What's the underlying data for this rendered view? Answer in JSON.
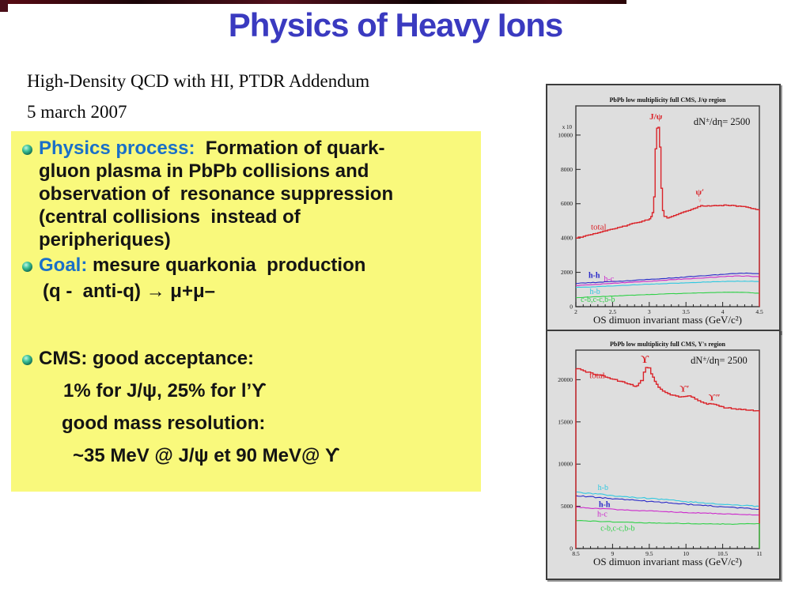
{
  "slide": {
    "title": "Physics of Heavy Ions",
    "subtitle_line1": "High-Density QCD with HI, PTDR Addendum",
    "subtitle_line2": "5 march 2007",
    "accent_blue": "#1a70c8",
    "title_blue": "#3a3ac0",
    "box_yellow": "#f9f97c",
    "bullets": {
      "b1_label": "Physics process:",
      "b1_line1": "  Formation of quark-",
      "b1_lines": [
        "gluon plasma in PbPb collisions and",
        "observation of  resonance suppression",
        "(central collisions  instead of",
        "peripheriques)"
      ],
      "b2_label": "Goal:",
      "b2_text": " mesure quarkonia  production",
      "b2_formula": "(q -  anti-q) → μ+μ–",
      "b3_text": "CMS: good acceptance:",
      "b3_sub1": "1% for J/ψ, 25% for l’ϒ",
      "b3_sub2": "good mass resolution:",
      "b3_sub3": "~35 MeV @ J/ψ et 90 MeV@ ϒ"
    }
  },
  "chart_data": [
    {
      "type": "line",
      "title": "PbPb low multiplicity full CMS, J/ψ region",
      "xlabel": "OS dimuon invariant mass (GeV/c²)",
      "xlim": [
        2,
        4.5
      ],
      "ylim": [
        0,
        11700
      ],
      "xticks": [
        2,
        2.5,
        3,
        3.5,
        4,
        4.5
      ],
      "minor_x_step": 0.1,
      "yticks": [
        0,
        2000,
        4000,
        6000,
        8000,
        10000
      ],
      "y_scale_label": "x 10",
      "grid": false,
      "series": [
        {
          "name": "c-b,c-c,b-b",
          "color": "#30d048",
          "noise": 10,
          "width": 1.1,
          "points": [
            [
              2,
              520
            ],
            [
              2.3,
              580
            ],
            [
              2.6,
              640
            ],
            [
              2.9,
              690
            ],
            [
              3.2,
              740
            ],
            [
              3.5,
              780
            ],
            [
              3.8,
              815
            ],
            [
              4.05,
              840
            ],
            [
              4.2,
              845
            ],
            [
              4.35,
              825
            ],
            [
              4.5,
              780
            ]
          ]
        },
        {
          "name": "h-b",
          "color": "#30c8e0",
          "noise": 14,
          "width": 1.1,
          "points": [
            [
              2,
              1120
            ],
            [
              2.3,
              1170
            ],
            [
              2.6,
              1230
            ],
            [
              2.9,
              1290
            ],
            [
              3.2,
              1340
            ],
            [
              3.5,
              1390
            ],
            [
              3.8,
              1440
            ],
            [
              4.1,
              1480
            ],
            [
              4.3,
              1490
            ],
            [
              4.5,
              1460
            ]
          ]
        },
        {
          "name": "h-c",
          "color": "#cc28cc",
          "noise": 18,
          "width": 1.1,
          "points": [
            [
              2,
              1230
            ],
            [
              2.3,
              1300
            ],
            [
              2.6,
              1380
            ],
            [
              2.9,
              1460
            ],
            [
              3.2,
              1540
            ],
            [
              3.5,
              1620
            ],
            [
              3.8,
              1700
            ],
            [
              4.0,
              1750
            ],
            [
              4.2,
              1790
            ],
            [
              4.35,
              1790
            ],
            [
              4.5,
              1740
            ]
          ]
        },
        {
          "name": "h-h",
          "color": "#2828c8",
          "noise": 18,
          "width": 1.1,
          "points": [
            [
              2,
              1350
            ],
            [
              2.3,
              1420
            ],
            [
              2.6,
              1490
            ],
            [
              2.9,
              1560
            ],
            [
              3.2,
              1640
            ],
            [
              3.5,
              1730
            ],
            [
              3.8,
              1820
            ],
            [
              4.0,
              1880
            ],
            [
              4.2,
              1930
            ],
            [
              4.35,
              1950
            ],
            [
              4.5,
              1920
            ]
          ]
        },
        {
          "name": "total",
          "color": "#da2329",
          "noise": 25,
          "step": true,
          "width": 1.4,
          "points": [
            [
              2,
              4000
            ],
            [
              2.1,
              4100
            ],
            [
              2.2,
              4200
            ],
            [
              2.3,
              4310
            ],
            [
              2.4,
              4420
            ],
            [
              2.5,
              4530
            ],
            [
              2.6,
              4640
            ],
            [
              2.7,
              4760
            ],
            [
              2.8,
              4880
            ],
            [
              2.9,
              4990
            ],
            [
              2.98,
              5060
            ],
            [
              3.0,
              5120
            ],
            [
              3.02,
              5250
            ],
            [
              3.04,
              5480
            ],
            [
              3.06,
              6400
            ],
            [
              3.08,
              9200
            ],
            [
              3.1,
              10400
            ],
            [
              3.12,
              10450
            ],
            [
              3.14,
              9300
            ],
            [
              3.16,
              6900
            ],
            [
              3.18,
              5600
            ],
            [
              3.2,
              5260
            ],
            [
              3.24,
              5170
            ],
            [
              3.3,
              5260
            ],
            [
              3.4,
              5420
            ],
            [
              3.5,
              5570
            ],
            [
              3.6,
              5720
            ],
            [
              3.66,
              5830
            ],
            [
              3.7,
              5890
            ],
            [
              3.76,
              5860
            ],
            [
              3.85,
              5880
            ],
            [
              3.95,
              5900
            ],
            [
              4.05,
              5910
            ],
            [
              4.15,
              5890
            ],
            [
              4.25,
              5840
            ],
            [
              4.35,
              5770
            ],
            [
              4.45,
              5660
            ],
            [
              4.5,
              5600
            ]
          ]
        }
      ],
      "edges": [
        {
          "x": 4.5,
          "y1": 0,
          "y2": 5600,
          "color": "#da2329"
        }
      ],
      "annotations": [
        {
          "x": 3.09,
          "y": 11100,
          "text": "J/ψ",
          "color": "#da2329",
          "size": 11,
          "bold": true
        },
        {
          "x": 3.99,
          "y": 10800,
          "text": "dN±/dη= 2500",
          "color": "#111111",
          "size": 12.5
        },
        {
          "x": 3.69,
          "y": 6700,
          "text": "ψ′",
          "color": "#da2329",
          "size": 11,
          "bold": true
        },
        {
          "x": 3.69,
          "y": 6220,
          "text": "∨",
          "color": "#ef9a9a",
          "size": 7
        },
        {
          "x": 2.31,
          "y": 4660,
          "text": "total",
          "color": "#da2329",
          "size": 11
        },
        {
          "x": 2.25,
          "y": 1840,
          "text": "h-h",
          "color": "#2828c8",
          "size": 10,
          "bold": true
        },
        {
          "x": 2.45,
          "y": 1630,
          "text": "h-c",
          "color": "#cc28cc",
          "size": 10
        },
        {
          "x": 2.26,
          "y": 890,
          "text": "h-b",
          "color": "#30c8e0",
          "size": 10
        },
        {
          "x": 2.3,
          "y": 440,
          "text": "c-b,c-c,b-b",
          "color": "#30d048",
          "size": 10
        }
      ]
    },
    {
      "type": "line",
      "title": "PbPb low multiplicity full CMS, Y's region",
      "xlabel": "OS dimuon invariant mass (GeV/c²)",
      "xlim": [
        8.5,
        11
      ],
      "ylim": [
        0,
        23500
      ],
      "xticks": [
        8.5,
        9,
        9.5,
        10,
        10.5,
        11
      ],
      "minor_x_step": 0.1,
      "yticks": [
        0,
        5000,
        10000,
        15000,
        20000
      ],
      "y_scale_label": "",
      "grid": false,
      "series": [
        {
          "name": "c-b,c-c,b-b",
          "color": "#30d048",
          "noise": 35,
          "width": 1.1,
          "points": [
            [
              8.5,
              3300
            ],
            [
              8.8,
              3220
            ],
            [
              9.1,
              3130
            ],
            [
              9.4,
              3050
            ],
            [
              9.7,
              3000
            ],
            [
              10,
              2960
            ],
            [
              10.3,
              2920
            ],
            [
              10.6,
              2900
            ],
            [
              10.8,
              2920
            ],
            [
              11,
              2950
            ]
          ]
        },
        {
          "name": "h-c",
          "color": "#cc28cc",
          "noise": 45,
          "width": 1.1,
          "points": [
            [
              8.5,
              4900
            ],
            [
              8.8,
              4750
            ],
            [
              9.1,
              4600
            ],
            [
              9.4,
              4480
            ],
            [
              9.7,
              4370
            ],
            [
              10,
              4270
            ],
            [
              10.3,
              4180
            ],
            [
              10.6,
              4100
            ],
            [
              10.8,
              4020
            ],
            [
              11,
              3950
            ]
          ]
        },
        {
          "name": "h-h",
          "color": "#2828c8",
          "noise": 70,
          "width": 1.1,
          "points": [
            [
              8.5,
              6250
            ],
            [
              8.8,
              6050
            ],
            [
              9.1,
              5850
            ],
            [
              9.4,
              5650
            ],
            [
              9.7,
              5450
            ],
            [
              10,
              5250
            ],
            [
              10.3,
              5050
            ],
            [
              10.6,
              4900
            ],
            [
              10.8,
              4780
            ],
            [
              11,
              4650
            ]
          ]
        },
        {
          "name": "h-b",
          "color": "#30c8e0",
          "noise": 70,
          "width": 1.1,
          "points": [
            [
              8.5,
              6700
            ],
            [
              8.8,
              6450
            ],
            [
              9.1,
              6200
            ],
            [
              9.4,
              6000
            ],
            [
              9.7,
              5800
            ],
            [
              10,
              5550
            ],
            [
              10.3,
              5350
            ],
            [
              10.6,
              5200
            ],
            [
              10.8,
              5100
            ],
            [
              11,
              5000
            ]
          ]
        },
        {
          "name": "total",
          "color": "#da2329",
          "noise": 90,
          "step": true,
          "width": 1.4,
          "points": [
            [
              8.5,
              21300
            ],
            [
              8.6,
              21050
            ],
            [
              8.7,
              20800
            ],
            [
              8.8,
              20550
            ],
            [
              8.9,
              20300
            ],
            [
              9.0,
              20050
            ],
            [
              9.1,
              19800
            ],
            [
              9.2,
              19500
            ],
            [
              9.28,
              19250
            ],
            [
              9.33,
              19300
            ],
            [
              9.38,
              19900
            ],
            [
              9.42,
              20900
            ],
            [
              9.45,
              21450
            ],
            [
              9.48,
              21400
            ],
            [
              9.52,
              20700
            ],
            [
              9.57,
              19800
            ],
            [
              9.62,
              19100
            ],
            [
              9.68,
              18650
            ],
            [
              9.75,
              18350
            ],
            [
              9.82,
              18150
            ],
            [
              9.9,
              17950
            ],
            [
              9.97,
              18000
            ],
            [
              10.02,
              18080
            ],
            [
              10.07,
              17950
            ],
            [
              10.12,
              17700
            ],
            [
              10.2,
              17350
            ],
            [
              10.28,
              17100
            ],
            [
              10.34,
              17120
            ],
            [
              10.38,
              17080
            ],
            [
              10.45,
              16850
            ],
            [
              10.55,
              16650
            ],
            [
              10.65,
              16550
            ],
            [
              10.75,
              16450
            ],
            [
              10.85,
              16380
            ],
            [
              10.95,
              16320
            ],
            [
              11,
              16300
            ]
          ]
        }
      ],
      "edges": [
        {
          "x": 8.5,
          "y1": 0,
          "y2": 21300,
          "color": "#da2329"
        },
        {
          "x": 11,
          "y1": 0,
          "y2": 16300,
          "color": "#da2329"
        },
        {
          "x": 11,
          "y1": 0,
          "y2": 2950,
          "color": "#30d048"
        }
      ],
      "annotations": [
        {
          "x": 9.44,
          "y": 22450,
          "text": "ϒ",
          "color": "#da2329",
          "size": 14,
          "bold": true
        },
        {
          "x": 10.45,
          "y": 22300,
          "text": "dN±/dη= 2500",
          "color": "#111111",
          "size": 12.5
        },
        {
          "x": 8.79,
          "y": 20550,
          "text": "total",
          "color": "#da2329",
          "size": 11
        },
        {
          "x": 9.98,
          "y": 19000,
          "text": "ϒ′",
          "color": "#da2329",
          "size": 12,
          "bold": true
        },
        {
          "x": 10.39,
          "y": 17950,
          "text": "ϒ″",
          "color": "#da2329",
          "size": 12,
          "bold": true
        },
        {
          "x": 8.87,
          "y": 7250,
          "text": "h-b",
          "color": "#30c8e0",
          "size": 10
        },
        {
          "x": 8.89,
          "y": 5250,
          "text": "h-h",
          "color": "#2828c8",
          "size": 10,
          "bold": true
        },
        {
          "x": 8.86,
          "y": 4120,
          "text": "h-c",
          "color": "#cc28cc",
          "size": 10
        },
        {
          "x": 9.07,
          "y": 2420,
          "text": "c-b,c-c,b-b",
          "color": "#30d048",
          "size": 10
        }
      ]
    }
  ]
}
